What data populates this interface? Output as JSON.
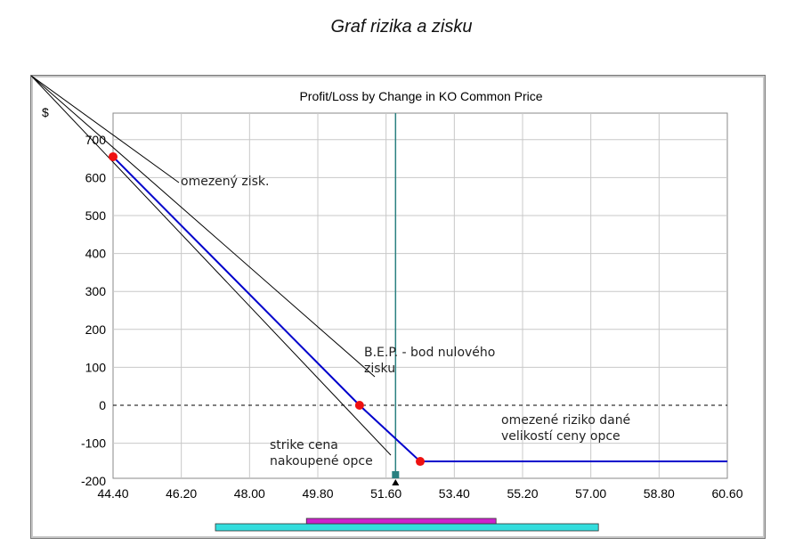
{
  "page": {
    "title": "Graf rizika a zisku"
  },
  "chart_data": {
    "type": "line",
    "title": "Profit/Loss by Change in KO Common Price",
    "ylabel": "$",
    "xlabel": "",
    "xlim": [
      44.4,
      60.6
    ],
    "ylim": [
      -200,
      750
    ],
    "x_ticks": [
      "44.40",
      "46.20",
      "48.00",
      "49.80",
      "51.60",
      "53.40",
      "55.20",
      "57.00",
      "58.80",
      "60.60"
    ],
    "y_ticks": [
      "700",
      "600",
      "500",
      "400",
      "300",
      "200",
      "100",
      "0",
      "-100",
      "-200"
    ],
    "grid": true,
    "current_price_marker": 51.85,
    "series": [
      {
        "points": [
          [
            44.4,
            655
          ],
          [
            50.9,
            0
          ],
          [
            52.5,
            -148
          ],
          [
            60.6,
            -148
          ]
        ],
        "color": "#0000cc"
      }
    ],
    "key_points": [
      {
        "x": 44.4,
        "y": 655
      },
      {
        "x": 50.9,
        "y": 0
      },
      {
        "x": 52.5,
        "y": -148
      }
    ],
    "annotations": [
      {
        "text": "omezený zisk.",
        "target": 0
      },
      {
        "text": "B.E.P. - bod nulového\nzisku",
        "target": 1
      },
      {
        "text": "strike cena\nnakoupené opce",
        "target": 2
      },
      {
        "text": "omezené riziko dané\nvelikostí ceny opce"
      }
    ],
    "range_bars": [
      {
        "name": "outer-range",
        "from": 47.1,
        "to": 57.2,
        "color": "#33dddd"
      },
      {
        "name": "inner-range",
        "from": 49.5,
        "to": 54.5,
        "color": "#cc22cc"
      }
    ],
    "colors": {
      "line": "#0000cc",
      "point": "#ee1111",
      "marker": "#2a8080",
      "grid": "#c8c8c8"
    }
  }
}
